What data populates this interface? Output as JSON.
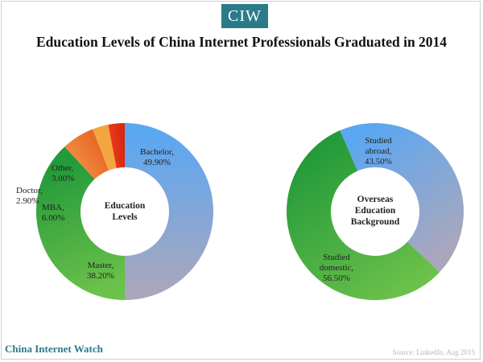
{
  "logo": {
    "text": "CIW"
  },
  "title": "Education Levels of China Internet Professionals Graduated in 2014",
  "brand": "China Internet Watch",
  "source": "Source: LinkedIn, Aug 2015",
  "chart_data": [
    {
      "type": "pie",
      "center_label": [
        "Education",
        "Levels"
      ],
      "slices": [
        {
          "label": [
            "Bachelor,",
            "49.90%"
          ],
          "value": 49.9,
          "color_start": "#5aa7f2",
          "color_end": "#a9a7bd"
        },
        {
          "label": [
            "Master,",
            "38.20%"
          ],
          "value": 38.2,
          "color_start": "#6cc14a",
          "color_end": "#249a3a"
        },
        {
          "label": [
            "MBA,",
            "6.00%"
          ],
          "value": 6.0,
          "color_start": "#f0863e",
          "color_end": "#e86a2a"
        },
        {
          "label": [
            "Doctor,",
            "2.90%"
          ],
          "value": 2.9,
          "color_start": "#f2a640",
          "color_end": "#f2a640"
        },
        {
          "label": [
            "Other,",
            "3.00%"
          ],
          "value": 3.0,
          "color_start": "#e8381a",
          "color_end": "#d42810"
        }
      ]
    },
    {
      "type": "pie",
      "center_label": [
        "Overseas",
        "Education",
        "Background"
      ],
      "slices": [
        {
          "label": [
            "Studied",
            "abroad,",
            "43.50%"
          ],
          "value": 43.5,
          "color_start": "#5aa7f2",
          "color_end": "#a9a7bd"
        },
        {
          "label": [
            "Studied",
            "domestic,",
            "56.50%"
          ],
          "value": 56.5,
          "color_start": "#6cc14a",
          "color_end": "#249a3a"
        }
      ]
    }
  ]
}
